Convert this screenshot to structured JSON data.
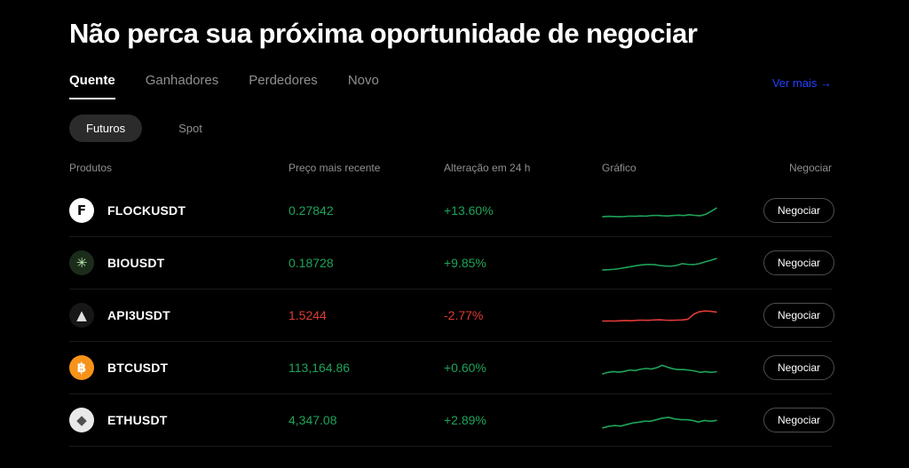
{
  "page": {
    "title": "Não perca sua próxima oportunidade de negociar"
  },
  "tabs": {
    "items": [
      {
        "label": "Quente",
        "active": true
      },
      {
        "label": "Ganhadores",
        "active": false
      },
      {
        "label": "Perdedores",
        "active": false
      },
      {
        "label": "Novo",
        "active": false
      }
    ],
    "ver_mais": "Ver mais →"
  },
  "filters": {
    "options": [
      {
        "label": "Futuros",
        "active": true
      },
      {
        "label": "Spot",
        "active": false
      }
    ]
  },
  "table": {
    "headers": [
      "Produtos",
      "Preço mais recente",
      "Alteração em 24 h",
      "Gráfico",
      "Negociar"
    ],
    "trade_button_label": "Negociar",
    "rows": [
      {
        "symbol": "FLOCKUSDT",
        "price": "0.27842",
        "change": "+13.60%",
        "trend": "up",
        "icon": {
          "name": "flock-coin-icon",
          "glyph": "F",
          "bg": "#ffffff",
          "fg": "#111111"
        },
        "spark": [
          18,
          20,
          19,
          18,
          19,
          21,
          20,
          22,
          21,
          24,
          25,
          23,
          22,
          24,
          26,
          24,
          28,
          25,
          23,
          30,
          45,
          62
        ]
      },
      {
        "symbol": "BIOUSDT",
        "price": "0.18728",
        "change": "+9.85%",
        "trend": "up",
        "icon": {
          "name": "bio-coin-icon",
          "glyph": "✳",
          "bg": "#1b2d1a",
          "fg": "#bfeaad"
        },
        "spark": [
          14,
          15,
          17,
          21,
          26,
          31,
          36,
          40,
          42,
          41,
          37,
          34,
          33,
          37,
          46,
          42,
          41,
          46,
          55,
          63,
          72
        ]
      },
      {
        "symbol": "API3USDT",
        "price": "1.5244",
        "change": "-2.77%",
        "trend": "down",
        "icon": {
          "name": "api3-coin-icon",
          "glyph": "▲",
          "bg": "#171717",
          "fg": "#e2e2e2"
        },
        "spark": [
          20,
          21,
          20,
          22,
          23,
          22,
          24,
          25,
          24,
          26,
          27,
          25,
          24,
          25,
          26,
          30,
          55,
          68,
          72,
          70,
          66
        ]
      },
      {
        "symbol": "BTCUSDT",
        "price": "113,164.86",
        "change": "+0.60%",
        "trend": "up",
        "icon": {
          "name": "btc-coin-icon",
          "glyph": "฿",
          "bg": "#f7931a",
          "fg": "#ffffff"
        },
        "spark": [
          18,
          26,
          30,
          27,
          31,
          38,
          35,
          42,
          46,
          43,
          50,
          62,
          52,
          44,
          40,
          40,
          37,
          33,
          26,
          30,
          26,
          29
        ]
      },
      {
        "symbol": "ETHUSDT",
        "price": "4,347.08",
        "change": "+2.89%",
        "trend": "up",
        "icon": {
          "name": "eth-coin-icon",
          "glyph": "◆",
          "bg": "#e9e9e9",
          "fg": "#4f4f4f"
        },
        "spark": [
          10,
          18,
          22,
          19,
          27,
          35,
          39,
          44,
          44,
          52,
          60,
          64,
          56,
          52,
          52,
          48,
          40,
          48,
          44,
          48
        ]
      }
    ]
  },
  "colors": {
    "up": "#1ea35a",
    "down": "#e03a36",
    "link": "#2440ff"
  }
}
